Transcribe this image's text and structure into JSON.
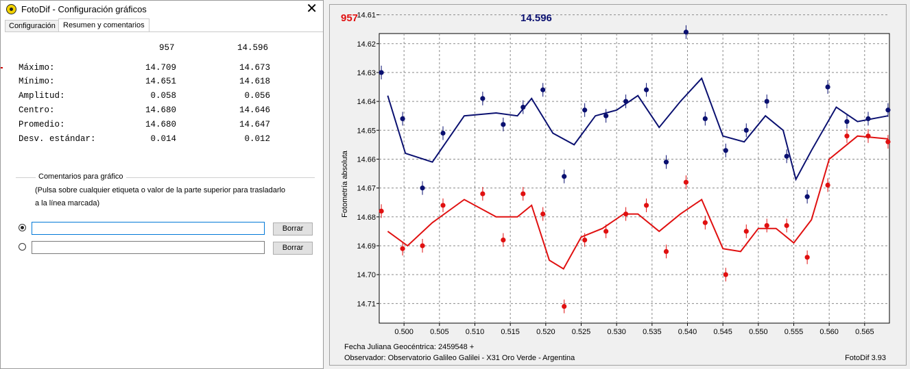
{
  "window": {
    "title": "FotoDif - Configuración gráficos",
    "close_glyph": "✕"
  },
  "tabs": [
    {
      "label": "Configuración"
    },
    {
      "label": "Resumen y comentarios"
    }
  ],
  "stats": {
    "col_headers": [
      "957",
      "14.596"
    ],
    "rows": [
      {
        "label": "Máximo:",
        "v1": "14.709",
        "v2": "14.673"
      },
      {
        "label": "Mínimo:",
        "v1": "14.651",
        "v2": "14.618"
      },
      {
        "label": "Amplitud:",
        "v1": "0.058",
        "v2": "0.056"
      },
      {
        "label": "Centro:",
        "v1": "14.680",
        "v2": "14.646"
      },
      {
        "label": "Promedio:",
        "v1": "14.680",
        "v2": "14.647"
      },
      {
        "label": "Desv. estándar:",
        "v1": "0.014",
        "v2": "0.012"
      }
    ]
  },
  "comments": {
    "legend": "Comentarios para gráfico",
    "hint_line1": "(Pulsa sobre cualquier etiqueta o valor de la parte superior para trasladarlo",
    "hint_line2": "a la línea marcada)",
    "field1_value": "",
    "field2_value": "",
    "button_label": "Borrar"
  },
  "chart_data": {
    "type": "scatter",
    "header_labels": [
      "957",
      "14.596"
    ],
    "ylabel": "Fotometría absoluta",
    "xlim": [
      0.4965,
      0.5685
    ],
    "ylim": [
      14.6165,
      14.7168
    ],
    "y_inverted": true,
    "y_ticks": [
      "14.61",
      "14.62",
      "14.63",
      "14.64",
      "14.65",
      "14.66",
      "14.67",
      "14.68",
      "14.69",
      "14.70",
      "14.71"
    ],
    "x_ticks": [
      "0.500",
      "0.505",
      "0.510",
      "0.515",
      "0.520",
      "0.525",
      "0.530",
      "0.535",
      "0.540",
      "0.545",
      "0.550",
      "0.555",
      "0.560",
      "0.565"
    ],
    "grid": true,
    "colors": {
      "blue": "#0a1070",
      "red": "#e01010"
    },
    "series": [
      {
        "name": "14.596",
        "color": "#0a1070",
        "points": [
          [
            0.4968,
            14.63
          ],
          [
            0.4998,
            14.646
          ],
          [
            0.5026,
            14.67
          ],
          [
            0.5055,
            14.651
          ],
          [
            0.5111,
            14.639
          ],
          [
            0.514,
            14.648
          ],
          [
            0.5168,
            14.642
          ],
          [
            0.5196,
            14.636
          ],
          [
            0.5226,
            14.666
          ],
          [
            0.5255,
            14.643
          ],
          [
            0.5285,
            14.645
          ],
          [
            0.5313,
            14.64
          ],
          [
            0.5342,
            14.636
          ],
          [
            0.537,
            14.661
          ],
          [
            0.5398,
            14.616
          ],
          [
            0.5425,
            14.646
          ],
          [
            0.5454,
            14.657
          ],
          [
            0.5483,
            14.65
          ],
          [
            0.5512,
            14.64
          ],
          [
            0.554,
            14.659
          ],
          [
            0.5569,
            14.673
          ],
          [
            0.5598,
            14.635
          ],
          [
            0.5625,
            14.647
          ],
          [
            0.5655,
            14.646
          ],
          [
            0.5683,
            14.643
          ]
        ],
        "line": [
          [
            0.4977,
            14.638
          ],
          [
            0.5002,
            14.658
          ],
          [
            0.504,
            14.661
          ],
          [
            0.5085,
            14.645
          ],
          [
            0.513,
            14.644
          ],
          [
            0.516,
            14.645
          ],
          [
            0.518,
            14.639
          ],
          [
            0.521,
            14.651
          ],
          [
            0.524,
            14.655
          ],
          [
            0.527,
            14.645
          ],
          [
            0.53,
            14.643
          ],
          [
            0.533,
            14.638
          ],
          [
            0.536,
            14.649
          ],
          [
            0.539,
            14.64
          ],
          [
            0.542,
            14.632
          ],
          [
            0.545,
            14.652
          ],
          [
            0.548,
            14.654
          ],
          [
            0.551,
            14.645
          ],
          [
            0.5535,
            14.65
          ],
          [
            0.5553,
            14.667
          ],
          [
            0.5575,
            14.657
          ],
          [
            0.561,
            14.642
          ],
          [
            0.564,
            14.647
          ],
          [
            0.5683,
            14.645
          ]
        ]
      },
      {
        "name": "957",
        "color": "#e01010",
        "points": [
          [
            0.4968,
            14.678
          ],
          [
            0.4998,
            14.691
          ],
          [
            0.5026,
            14.69
          ],
          [
            0.5055,
            14.676
          ],
          [
            0.5111,
            14.672
          ],
          [
            0.514,
            14.688
          ],
          [
            0.5168,
            14.672
          ],
          [
            0.5196,
            14.679
          ],
          [
            0.5226,
            14.711
          ],
          [
            0.5255,
            14.688
          ],
          [
            0.5285,
            14.685
          ],
          [
            0.5313,
            14.679
          ],
          [
            0.5342,
            14.676
          ],
          [
            0.537,
            14.692
          ],
          [
            0.5398,
            14.668
          ],
          [
            0.5425,
            14.682
          ],
          [
            0.5454,
            14.7
          ],
          [
            0.5483,
            14.685
          ],
          [
            0.5512,
            14.683
          ],
          [
            0.554,
            14.683
          ],
          [
            0.5569,
            14.694
          ],
          [
            0.5598,
            14.669
          ],
          [
            0.5625,
            14.652
          ],
          [
            0.5655,
            14.652
          ],
          [
            0.5683,
            14.654
          ]
        ],
        "line": [
          [
            0.4977,
            14.685
          ],
          [
            0.5005,
            14.69
          ],
          [
            0.504,
            14.682
          ],
          [
            0.5085,
            14.674
          ],
          [
            0.513,
            14.68
          ],
          [
            0.516,
            14.68
          ],
          [
            0.518,
            14.676
          ],
          [
            0.5205,
            14.695
          ],
          [
            0.5225,
            14.698
          ],
          [
            0.525,
            14.687
          ],
          [
            0.528,
            14.684
          ],
          [
            0.531,
            14.679
          ],
          [
            0.533,
            14.679
          ],
          [
            0.536,
            14.685
          ],
          [
            0.539,
            14.679
          ],
          [
            0.542,
            14.674
          ],
          [
            0.545,
            14.691
          ],
          [
            0.5475,
            14.692
          ],
          [
            0.55,
            14.684
          ],
          [
            0.5525,
            14.684
          ],
          [
            0.555,
            14.689
          ],
          [
            0.5575,
            14.681
          ],
          [
            0.56,
            14.66
          ],
          [
            0.564,
            14.652
          ],
          [
            0.5683,
            14.653
          ]
        ]
      }
    ],
    "footer_left_1": "Fecha Juliana Geocéntrica: 2459548 +",
    "footer_left_2": "Observador: Observatorio Galileo Galilei - X31 Oro Verde - Argentina",
    "footer_right": "FotoDif 3.93"
  }
}
